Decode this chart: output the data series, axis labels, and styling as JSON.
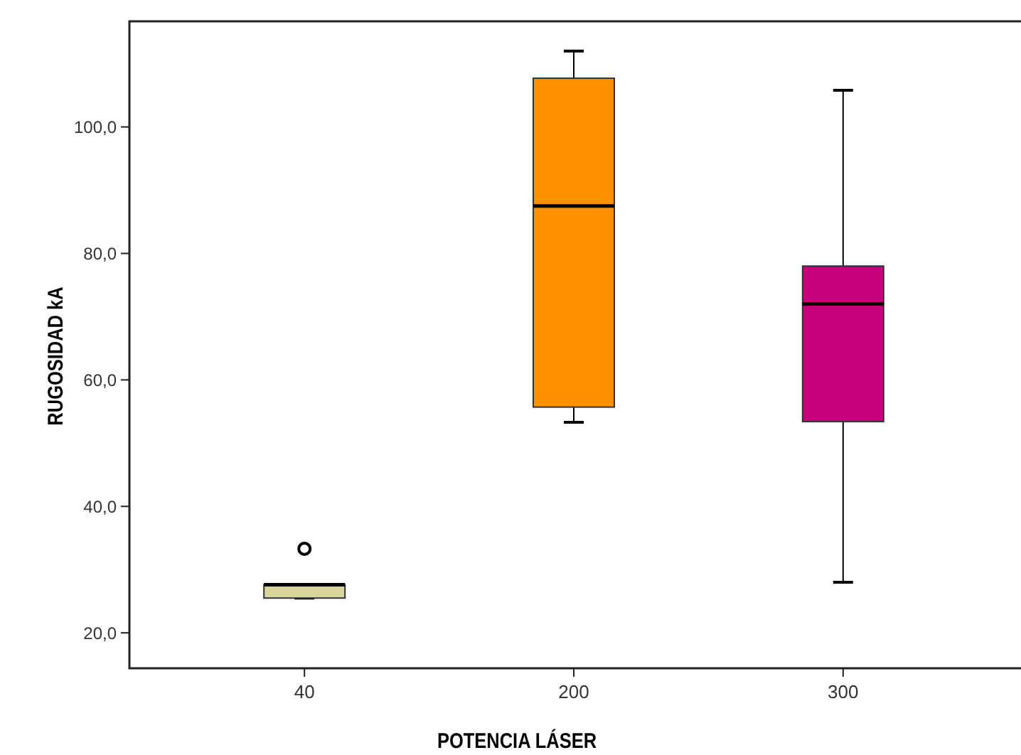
{
  "chart_data": {
    "type": "box",
    "xlabel": "POTENCIA LÁSER",
    "ylabel": "RUGOSIDAD kA",
    "categories": [
      "40",
      "200",
      "300"
    ],
    "colors": [
      "#d9d49b",
      "#ff9100",
      "#c8007a"
    ],
    "boxes": [
      {
        "low": 25.5,
        "q1": 25.5,
        "median": 27.6,
        "q3": 27.6,
        "high": 27.6,
        "outliers": [
          33.3
        ]
      },
      {
        "low": 53.3,
        "q1": 55.7,
        "median": 87.5,
        "q3": 107.7,
        "high": 112.0
      },
      {
        "low": 28.0,
        "q1": 53.4,
        "median": 72.0,
        "q3": 78.0,
        "high": 105.8
      }
    ],
    "ylim": [
      14.4,
      116.7
    ],
    "yticks": [
      {
        "value": 20,
        "label": "20,0"
      },
      {
        "value": 40,
        "label": "40,0"
      },
      {
        "value": 60,
        "label": "60,0"
      },
      {
        "value": 80,
        "label": "80,0"
      },
      {
        "value": 100,
        "label": "100,0"
      }
    ]
  }
}
